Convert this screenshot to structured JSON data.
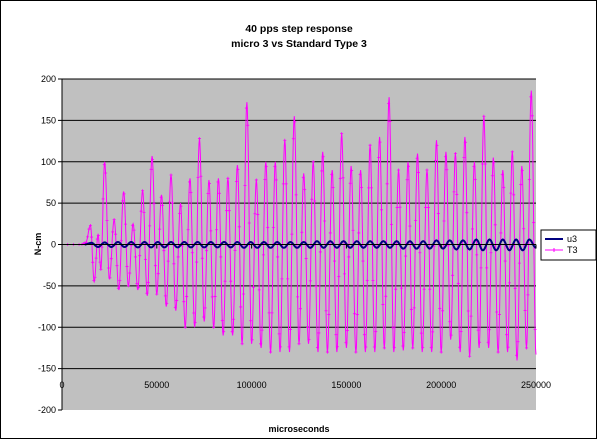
{
  "chart_data": {
    "type": "line",
    "title": "40 pps step response",
    "subtitle": "micro 3 vs Standard Type 3",
    "xlabel": "microseconds",
    "ylabel": "N-cm",
    "xlim": [
      0,
      250000
    ],
    "ylim": [
      -200,
      200
    ],
    "x_ticks": [
      0,
      50000,
      100000,
      150000,
      200000,
      250000
    ],
    "x_tick_labels": [
      "0",
      "50000",
      "100000",
      "150000",
      "200000",
      "250000"
    ],
    "y_ticks": [
      -200,
      -150,
      -100,
      -50,
      0,
      50,
      100,
      150,
      200
    ],
    "y_tick_labels": [
      "-200",
      "-150",
      "-100",
      "-50",
      "0",
      "50",
      "100",
      "150",
      "200"
    ],
    "grid": "horizontal",
    "plot_background": "#C0C0C0",
    "legend_position": "right",
    "series": [
      {
        "name": "u3",
        "color": "#000080",
        "marker": "line",
        "peaks": [
          [
            12000,
            0
          ],
          [
            15500,
            2
          ],
          [
            19000,
            -3
          ],
          [
            22500,
            2.5
          ],
          [
            26000,
            -3
          ],
          [
            29500,
            3
          ],
          [
            33000,
            -3
          ],
          [
            36500,
            3
          ],
          [
            40000,
            -3.5
          ],
          [
            43500,
            3
          ],
          [
            47000,
            -3.5
          ],
          [
            50500,
            3
          ],
          [
            54000,
            -3.5
          ],
          [
            57500,
            3
          ],
          [
            61000,
            -3.5
          ],
          [
            64500,
            3
          ],
          [
            68000,
            -3.5
          ],
          [
            71500,
            3
          ],
          [
            75000,
            -3.5
          ],
          [
            78500,
            3
          ],
          [
            82000,
            -3.5
          ],
          [
            85500,
            3
          ],
          [
            89000,
            -3.5
          ],
          [
            92500,
            3
          ],
          [
            96000,
            -4
          ],
          [
            99500,
            3
          ],
          [
            103000,
            -4
          ],
          [
            106500,
            3
          ],
          [
            110000,
            -4
          ],
          [
            113500,
            3
          ],
          [
            117000,
            -4
          ],
          [
            120500,
            3
          ],
          [
            124000,
            -4
          ],
          [
            127500,
            3
          ],
          [
            131000,
            -4
          ],
          [
            134500,
            4
          ],
          [
            138000,
            -4
          ],
          [
            141500,
            4
          ],
          [
            145000,
            -4
          ],
          [
            148500,
            4
          ],
          [
            152000,
            -4
          ],
          [
            155500,
            4
          ],
          [
            159000,
            -4
          ],
          [
            162500,
            4
          ],
          [
            166000,
            -4
          ],
          [
            169500,
            4
          ],
          [
            173000,
            -4
          ],
          [
            176500,
            4
          ],
          [
            180000,
            -5
          ],
          [
            183500,
            4
          ],
          [
            187000,
            -5
          ],
          [
            190500,
            4
          ],
          [
            194000,
            -5
          ],
          [
            197500,
            5
          ],
          [
            201000,
            -5
          ],
          [
            204500,
            5
          ],
          [
            208000,
            -6
          ],
          [
            211500,
            5
          ],
          [
            215000,
            -6
          ],
          [
            218500,
            6
          ],
          [
            222000,
            -7
          ],
          [
            225500,
            6
          ],
          [
            229000,
            -7
          ],
          [
            232500,
            6
          ],
          [
            236000,
            -7
          ],
          [
            239500,
            6
          ],
          [
            243000,
            -7
          ],
          [
            246500,
            6
          ],
          [
            250000,
            -4
          ]
        ]
      },
      {
        "name": "T3",
        "color": "#FF00FF",
        "marker": "plus",
        "peaks": [
          [
            0,
            0
          ],
          [
            10000,
            0
          ],
          [
            12500,
            2
          ],
          [
            15000,
            23
          ],
          [
            17000,
            -45
          ],
          [
            19000,
            12
          ],
          [
            20500,
            -30
          ],
          [
            22500,
            100
          ],
          [
            25000,
            -42
          ],
          [
            27500,
            30
          ],
          [
            30000,
            -55
          ],
          [
            32500,
            64
          ],
          [
            35000,
            -50
          ],
          [
            37500,
            25
          ],
          [
            40000,
            -55
          ],
          [
            42500,
            65
          ],
          [
            45000,
            -62
          ],
          [
            47500,
            107
          ],
          [
            50000,
            -60
          ],
          [
            52500,
            60
          ],
          [
            55000,
            -75
          ],
          [
            57500,
            84
          ],
          [
            60000,
            -80
          ],
          [
            62500,
            50
          ],
          [
            65000,
            -100
          ],
          [
            67500,
            80
          ],
          [
            70000,
            -100
          ],
          [
            72500,
            128
          ],
          [
            75000,
            -93
          ],
          [
            77500,
            78
          ],
          [
            80000,
            -100
          ],
          [
            82500,
            80
          ],
          [
            85000,
            -110
          ],
          [
            87500,
            80
          ],
          [
            90000,
            -110
          ],
          [
            92500,
            96
          ],
          [
            95000,
            -120
          ],
          [
            97500,
            172
          ],
          [
            100000,
            -120
          ],
          [
            102500,
            78
          ],
          [
            105000,
            -125
          ],
          [
            107500,
            100
          ],
          [
            110000,
            -130
          ],
          [
            112500,
            100
          ],
          [
            115000,
            -130
          ],
          [
            117500,
            126
          ],
          [
            120000,
            -130
          ],
          [
            122500,
            155
          ],
          [
            125000,
            -120
          ],
          [
            127500,
            86
          ],
          [
            130000,
            -120
          ],
          [
            132500,
            100
          ],
          [
            135000,
            -130
          ],
          [
            137500,
            112
          ],
          [
            140000,
            -130
          ],
          [
            142500,
            90
          ],
          [
            145000,
            -130
          ],
          [
            147500,
            134
          ],
          [
            150000,
            -125
          ],
          [
            152500,
            95
          ],
          [
            155000,
            -130
          ],
          [
            157500,
            90
          ],
          [
            160000,
            -130
          ],
          [
            162500,
            120
          ],
          [
            165000,
            -130
          ],
          [
            167500,
            130
          ],
          [
            170000,
            -125
          ],
          [
            172500,
            178
          ],
          [
            175000,
            -130
          ],
          [
            177500,
            90
          ],
          [
            180000,
            -128
          ],
          [
            182500,
            100
          ],
          [
            185000,
            -125
          ],
          [
            187500,
            110
          ],
          [
            190000,
            -130
          ],
          [
            192500,
            90
          ],
          [
            195000,
            -130
          ],
          [
            197500,
            126
          ],
          [
            200000,
            -130
          ],
          [
            202500,
            112
          ],
          [
            205000,
            -115
          ],
          [
            207500,
            110
          ],
          [
            210000,
            -130
          ],
          [
            212500,
            130
          ],
          [
            215000,
            -135
          ],
          [
            217500,
            100
          ],
          [
            220000,
            -125
          ],
          [
            222500,
            155
          ],
          [
            225000,
            -125
          ],
          [
            227500,
            105
          ],
          [
            230000,
            -130
          ],
          [
            232500,
            90
          ],
          [
            235000,
            -130
          ],
          [
            237500,
            112
          ],
          [
            240000,
            -140
          ],
          [
            242500,
            95
          ],
          [
            245000,
            -125
          ],
          [
            247500,
            186
          ],
          [
            250000,
            -133
          ]
        ]
      }
    ]
  }
}
